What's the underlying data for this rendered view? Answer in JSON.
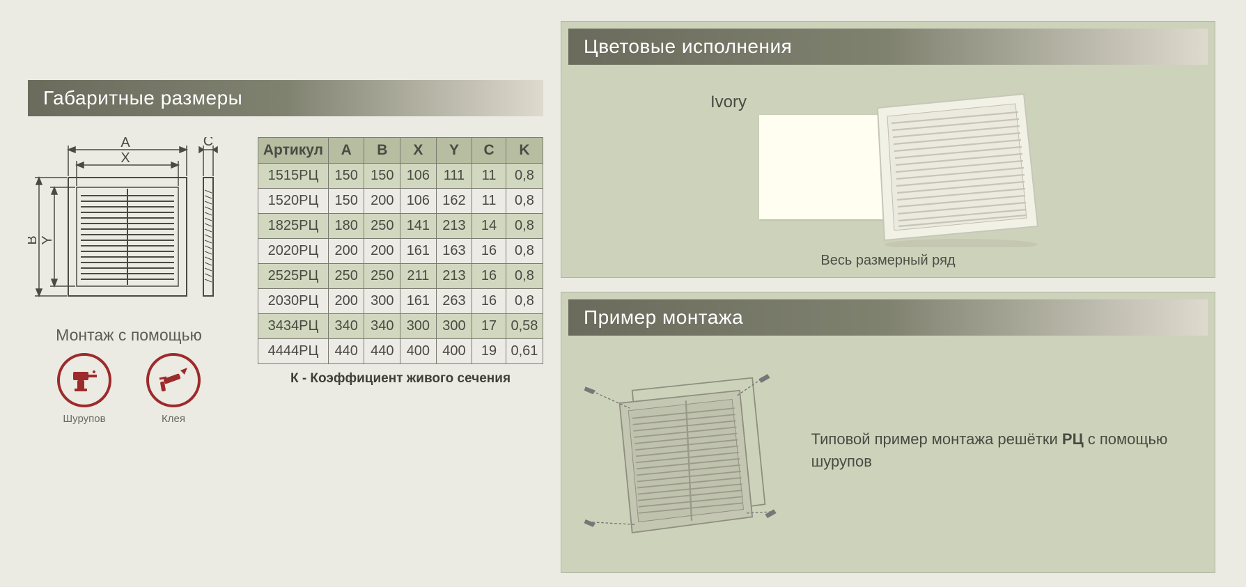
{
  "dims": {
    "title": "Габаритные размеры",
    "diagram_labels": {
      "A": "A",
      "B": "B",
      "C": "C",
      "X": "X",
      "Y": "Y"
    },
    "mount_title": "Монтаж с помощью",
    "mount_items": [
      {
        "label": "Шурупов"
      },
      {
        "label": "Клея"
      }
    ],
    "table": {
      "columns": [
        "Артикул",
        "A",
        "B",
        "X",
        "Y",
        "C",
        "K"
      ],
      "col_widths": [
        "col-art",
        "col-n",
        "col-n",
        "col-n",
        "col-n",
        "col-n",
        "col-n"
      ],
      "rows": [
        [
          "1515РЦ",
          "150",
          "150",
          "106",
          "111",
          "11",
          "0,8"
        ],
        [
          "1520РЦ",
          "150",
          "200",
          "106",
          "162",
          "11",
          "0,8"
        ],
        [
          "1825РЦ",
          "180",
          "250",
          "141",
          "213",
          "14",
          "0,8"
        ],
        [
          "2020РЦ",
          "200",
          "200",
          "161",
          "163",
          "16",
          "0,8"
        ],
        [
          "2525РЦ",
          "250",
          "250",
          "211",
          "213",
          "16",
          "0,8"
        ],
        [
          "2030РЦ",
          "200",
          "300",
          "161",
          "263",
          "16",
          "0,8"
        ],
        [
          "3434РЦ",
          "340",
          "340",
          "300",
          "300",
          "17",
          "0,58"
        ],
        [
          "4444РЦ",
          "440",
          "440",
          "400",
          "400",
          "19",
          "0,61"
        ]
      ],
      "row_alt": "#d2d8bf",
      "row_plain": "#ecebe5",
      "header_bg": "#b6bda0",
      "border": "#7a7a70"
    },
    "k_note": "К - Коэффициент живого сечения"
  },
  "colors_panel": {
    "title": "Цветовые исполнения",
    "color_name": "Ivory",
    "swatch_hex": "#fffef0",
    "caption": "Весь размерный ряд"
  },
  "mount_panel": {
    "title": "Пример монтажа",
    "text_prefix": "Типовой пример монтажа решётки ",
    "text_bold": "РЦ",
    "text_suffix": " с помощью шурупов"
  },
  "style": {
    "page_bg": "#ebeae3",
    "panel_bg": "#cdd3bb",
    "header_gradient": [
      "#6a6b5c",
      "#808270",
      "#dedace"
    ],
    "icon_ring": "#9c2b2b",
    "text_color": "#4a4a44"
  }
}
